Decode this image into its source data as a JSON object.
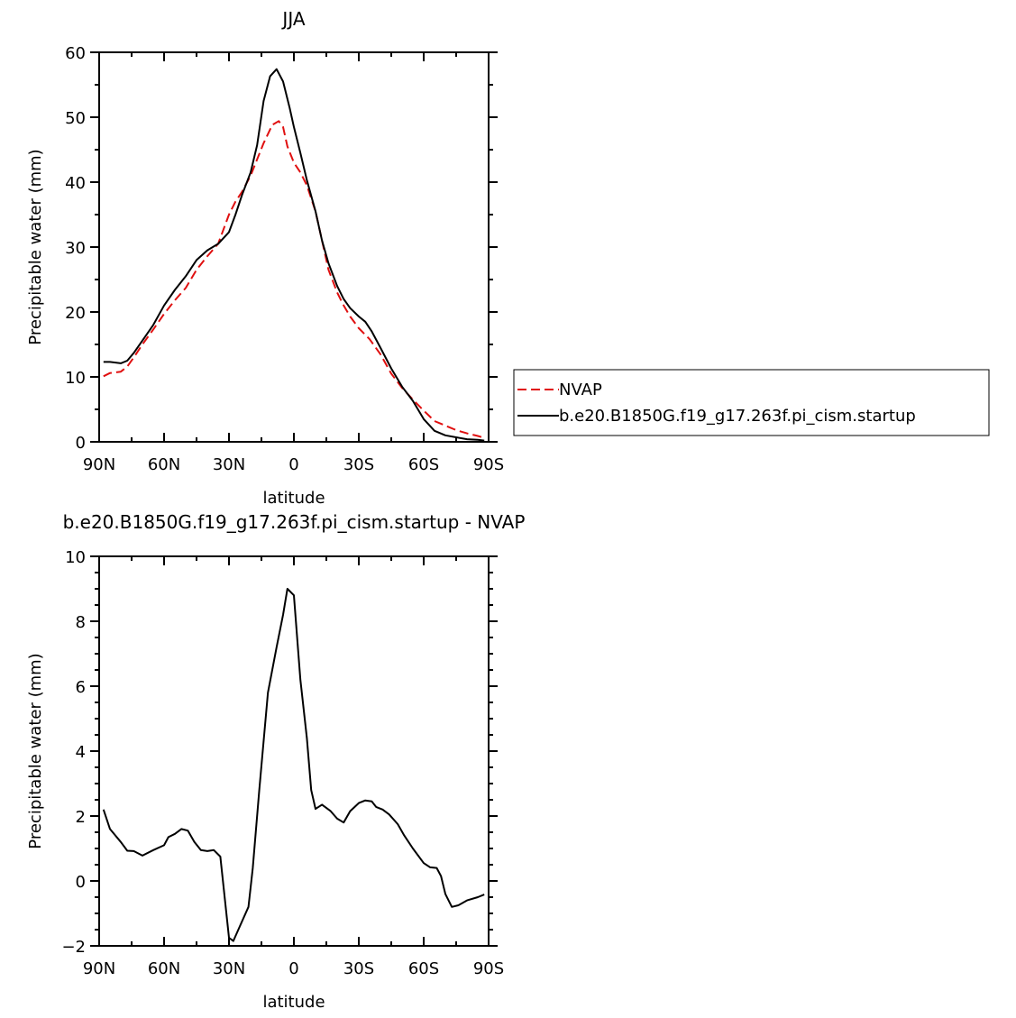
{
  "chart_data": [
    {
      "type": "line",
      "title": "JJA",
      "xlabel": "latitude",
      "ylabel": "Precipitable water (mm)",
      "xlim": [
        90,
        -90
      ],
      "ylim": [
        0,
        60
      ],
      "x_ticks": [
        90,
        60,
        30,
        0,
        -30,
        -60,
        -90
      ],
      "x_tick_labels": [
        "90N",
        "60N",
        "30N",
        "0",
        "30S",
        "60S",
        "90S"
      ],
      "y_ticks": [
        0,
        10,
        20,
        30,
        40,
        50,
        60
      ],
      "y_tick_labels": [
        "0",
        "10",
        "20",
        "30",
        "40",
        "50",
        "60"
      ],
      "legend": "right",
      "series": [
        {
          "name": "NVAP",
          "color": "#e01010",
          "style": "dashed",
          "x": [
            88,
            85,
            80,
            77,
            74,
            70,
            65,
            60,
            55,
            50,
            45,
            40,
            35,
            30,
            27,
            24,
            20,
            17,
            14,
            10,
            7,
            5,
            3,
            0,
            -3,
            -6,
            -10,
            -13,
            -16,
            -20,
            -23,
            -26,
            -30,
            -35,
            -40,
            -45,
            -50,
            -55,
            -60,
            -65,
            -70,
            -75,
            -80,
            -85,
            -88
          ],
          "y": [
            10.1,
            10.6,
            10.8,
            11.6,
            13,
            15,
            17.3,
            19.7,
            21.8,
            23.7,
            26.5,
            28.6,
            30.5,
            35,
            37,
            38.5,
            41,
            43.5,
            46,
            48.8,
            49.4,
            48.5,
            45.5,
            43,
            41.5,
            39.5,
            35.5,
            31,
            26.5,
            23,
            21,
            19.3,
            17.5,
            15.8,
            13.5,
            10.5,
            8.3,
            6.5,
            4.8,
            3.2,
            2.5,
            1.8,
            1.3,
            0.9,
            0.6
          ]
        },
        {
          "name": "b.e20.B1850G.f19_g17.263f.pi_cism.startup",
          "color": "#000000",
          "style": "solid",
          "x": [
            88,
            85,
            80,
            77,
            74,
            70,
            65,
            60,
            55,
            50,
            45,
            40,
            35,
            30,
            27,
            24,
            20,
            17,
            14,
            11,
            8,
            5,
            2,
            0,
            -3,
            -6,
            -10,
            -13,
            -16,
            -20,
            -23,
            -26,
            -30,
            -33,
            -36,
            -40,
            -45,
            -50,
            -55,
            -60,
            -65,
            -70,
            -75,
            -80,
            -85,
            -88
          ],
          "y": [
            12.3,
            12.3,
            12.1,
            12.5,
            13.7,
            15.6,
            18,
            21,
            23.4,
            25.5,
            28,
            29.5,
            30.5,
            32.3,
            35,
            38,
            41.5,
            45.7,
            52.5,
            56.3,
            57.4,
            55.5,
            51.5,
            48.5,
            44.5,
            40.3,
            35.5,
            31,
            27.5,
            24,
            22,
            20.6,
            19.3,
            18.5,
            17,
            14.5,
            11.3,
            8.5,
            6.3,
            3.5,
            1.7,
            1,
            0.7,
            0.4,
            0.3,
            0.2
          ]
        }
      ]
    },
    {
      "type": "line",
      "title": "b.e20.B1850G.f19_g17.263f.pi_cism.startup - NVAP",
      "xlabel": "latitude",
      "ylabel": "Precipitable water (mm)",
      "xlim": [
        90,
        -90
      ],
      "ylim": [
        -2,
        10
      ],
      "x_ticks": [
        90,
        60,
        30,
        0,
        -30,
        -60,
        -90
      ],
      "x_tick_labels": [
        "90N",
        "60N",
        "30N",
        "0",
        "30S",
        "60S",
        "90S"
      ],
      "y_ticks": [
        -2,
        0,
        2,
        4,
        6,
        8,
        10
      ],
      "y_tick_labels": [
        "−2",
        "0",
        "2",
        "4",
        "6",
        "8",
        "10"
      ],
      "series": [
        {
          "color": "#000000",
          "style": "solid",
          "x": [
            88,
            85,
            80,
            77,
            74,
            72,
            70,
            65,
            60,
            58,
            55,
            52,
            49,
            46,
            43,
            40,
            37,
            34,
            30,
            28,
            25,
            21,
            19,
            16,
            12,
            8,
            5,
            3,
            0,
            -3,
            -6,
            -8,
            -10,
            -13,
            -17,
            -20,
            -23,
            -26,
            -30,
            -33,
            -36,
            -38,
            -41,
            -44,
            -48,
            -51,
            -55,
            -60,
            -63,
            -66,
            -68,
            -70,
            -73,
            -76,
            -80,
            -85,
            -88
          ],
          "y": [
            2.2,
            1.6,
            1.2,
            0.93,
            0.92,
            0.85,
            0.78,
            0.95,
            1.1,
            1.35,
            1.45,
            1.6,
            1.55,
            1.2,
            0.95,
            0.92,
            0.95,
            0.75,
            -1.75,
            -1.85,
            -1.4,
            -0.8,
            0.4,
            2.8,
            5.8,
            7.2,
            8.2,
            9.0,
            8.8,
            6.2,
            4.4,
            2.8,
            2.22,
            2.35,
            2.15,
            1.92,
            1.8,
            2.15,
            2.4,
            2.48,
            2.45,
            2.28,
            2.2,
            2.05,
            1.75,
            1.4,
            1.0,
            0.55,
            0.42,
            0.4,
            0.15,
            -0.4,
            -0.8,
            -0.75,
            -0.6,
            -0.5,
            -0.42
          ]
        }
      ]
    }
  ]
}
